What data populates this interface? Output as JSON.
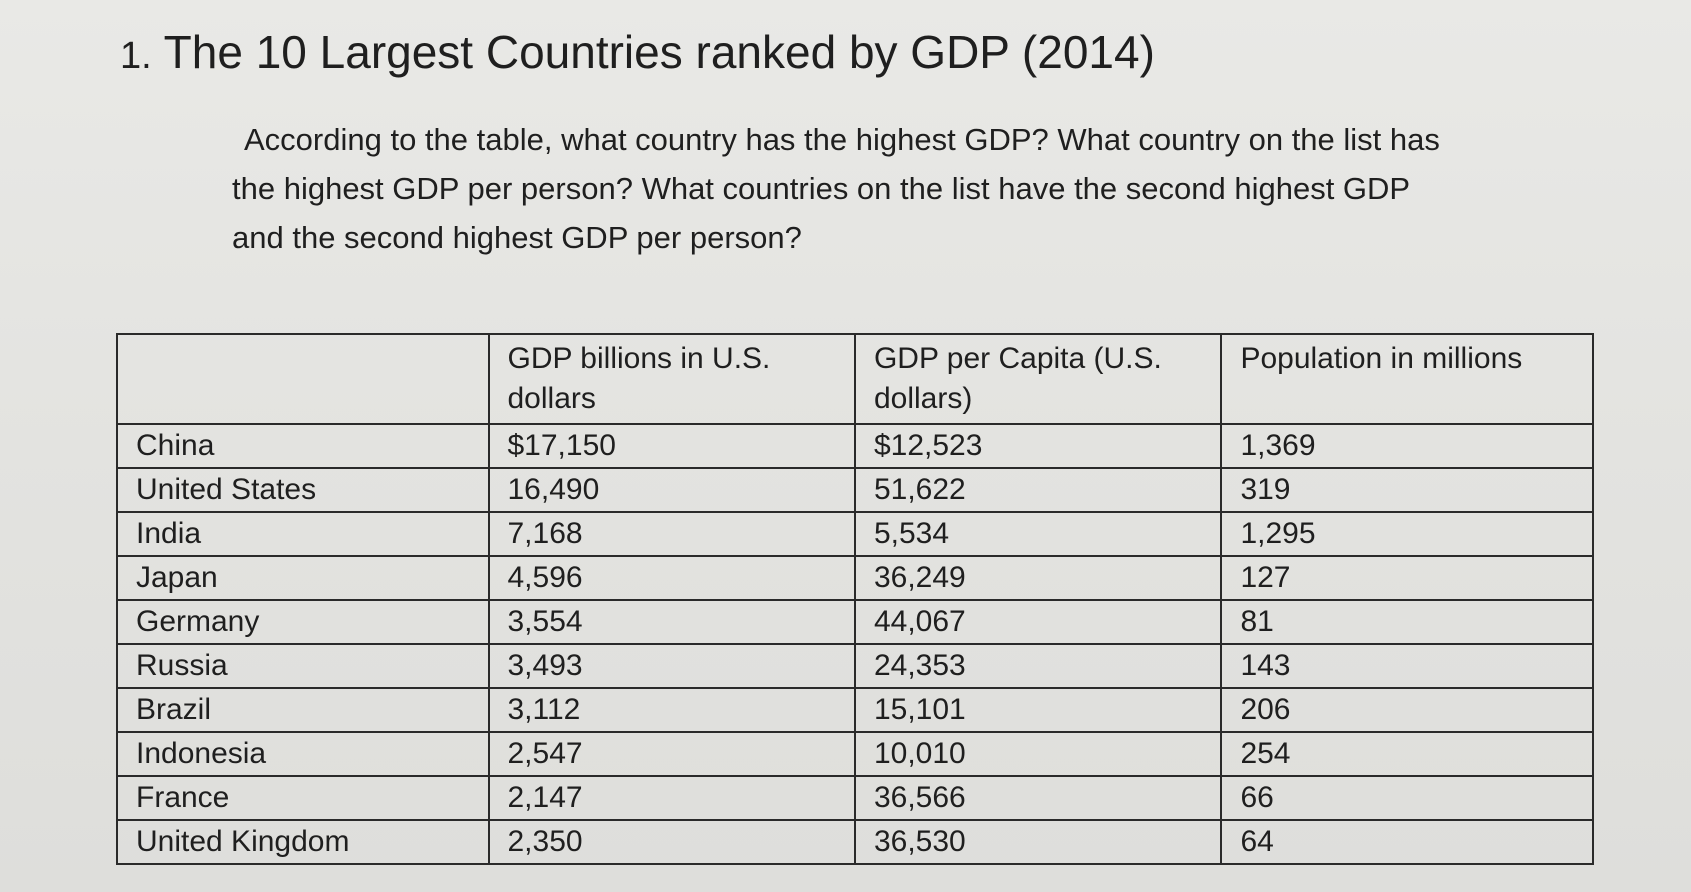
{
  "title": {
    "number": "1.",
    "text": "The 10 Largest Countries ranked by GDP (2014)"
  },
  "question": {
    "line1": "According to the table, what country has the highest GDP?  What country on the list has",
    "line2": "the highest GDP per person?  What countries on the list have the second highest GDP",
    "line3": "and the second highest GDP per person?"
  },
  "table": {
    "headers": [
      "",
      "GDP billions in U.S. dollars",
      "GDP per Capita (U.S. dollars)",
      "Population in millions"
    ],
    "rows": [
      [
        "China",
        "$17,150",
        "$12,523",
        "1,369"
      ],
      [
        "United States",
        "16,490",
        "51,622",
        "319"
      ],
      [
        "India",
        "7,168",
        "5,534",
        "1,295"
      ],
      [
        "Japan",
        "4,596",
        "36,249",
        "127"
      ],
      [
        "Germany",
        "3,554",
        "44,067",
        "81"
      ],
      [
        "Russia",
        "3,493",
        "24,353",
        "143"
      ],
      [
        "Brazil",
        "3,112",
        "15,101",
        "206"
      ],
      [
        "Indonesia",
        "2,547",
        "10,010",
        "254"
      ],
      [
        "France",
        "2,147",
        "36,566",
        "66"
      ],
      [
        "United Kingdom",
        "2,350",
        "36,530",
        "64"
      ]
    ]
  }
}
